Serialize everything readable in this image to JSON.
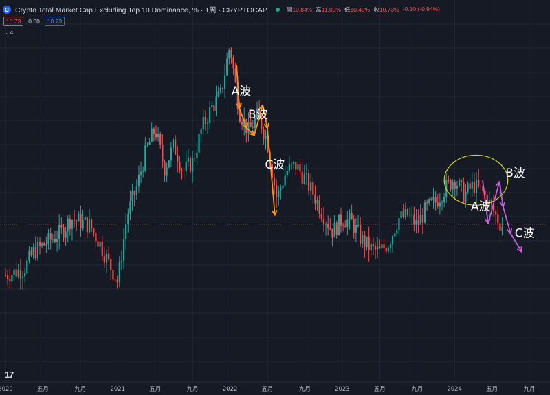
{
  "header": {
    "logo_glyph": "C",
    "title": "Crypto Total Market Cap Excluding Top 10 Dominance, % · 1周 · CRYPTOCAP",
    "open_label": "開",
    "open": "10.84%",
    "high_label": "高",
    "high": "11.00%",
    "low_label": "低",
    "low": "10.49%",
    "close_label": "收",
    "close": "10.73%",
    "change": "-0.10 (-0.94%)"
  },
  "indicator_row": {
    "value_red": "10.73",
    "value_plain": "0.00",
    "value_blue": "10.73"
  },
  "collapse_row": {
    "chevron": "⌄",
    "count": "4"
  },
  "tv_logo": "17",
  "colors": {
    "background": "#161a25",
    "up": "#26a69a",
    "down": "#ef5350",
    "grid": "#242838",
    "orange_wave": "#f7931a",
    "purple_wave": "#c064d8",
    "circle": "#d4d61c"
  },
  "chart_data": {
    "type": "candlestick",
    "x_ticks": [
      {
        "label": "2020",
        "t": 0
      },
      {
        "label": "五月",
        "t": 4
      },
      {
        "label": "九月",
        "t": 8
      },
      {
        "label": "2021",
        "t": 12
      },
      {
        "label": "五月",
        "t": 16
      },
      {
        "label": "九月",
        "t": 20
      },
      {
        "label": "2022",
        "t": 24
      },
      {
        "label": "五月",
        "t": 28
      },
      {
        "label": "九月",
        "t": 32
      },
      {
        "label": "2023",
        "t": 36
      },
      {
        "label": "五月",
        "t": 40
      },
      {
        "label": "九月",
        "t": 44
      },
      {
        "label": "2024",
        "t": 48
      },
      {
        "label": "五月",
        "t": 52
      },
      {
        "label": "九月",
        "t": 56
      }
    ],
    "t_range": [
      0,
      56.4
    ],
    "y_range": [
      7.6,
      16.8
    ],
    "anchors": [
      [
        0,
        9.2
      ],
      [
        1,
        9.3
      ],
      [
        2,
        9.4
      ],
      [
        3,
        9.9
      ],
      [
        4,
        10.1
      ],
      [
        5,
        10.3
      ],
      [
        6,
        10.5
      ],
      [
        7,
        10.9
      ],
      [
        8,
        10.8
      ],
      [
        9,
        10.7
      ],
      [
        10,
        10.2
      ],
      [
        11,
        9.6
      ],
      [
        12,
        9.0
      ],
      [
        13,
        11.0
      ],
      [
        14,
        11.8
      ],
      [
        15,
        12.9
      ],
      [
        16,
        13.6
      ],
      [
        17,
        12.4
      ],
      [
        18,
        13.1
      ],
      [
        19,
        12.3
      ],
      [
        20,
        12.6
      ],
      [
        21,
        13.6
      ],
      [
        22,
        14.2
      ],
      [
        23,
        14.6
      ],
      [
        24,
        16.1
      ],
      [
        25,
        14.1
      ],
      [
        26,
        13.5
      ],
      [
        27,
        14.0
      ],
      [
        28,
        13.2
      ],
      [
        29,
        11.5
      ],
      [
        30,
        12.3
      ],
      [
        31,
        12.5
      ],
      [
        32,
        12.1
      ],
      [
        33,
        11.6
      ],
      [
        34,
        11.0
      ],
      [
        35,
        10.5
      ],
      [
        36,
        10.9
      ],
      [
        37,
        10.8
      ],
      [
        38,
        10.3
      ],
      [
        39,
        10.0
      ],
      [
        40,
        9.9
      ],
      [
        41,
        10.2
      ],
      [
        42,
        10.9
      ],
      [
        43,
        11.0
      ],
      [
        44,
        10.7
      ],
      [
        45,
        11.2
      ],
      [
        46,
        11.4
      ],
      [
        47,
        11.8
      ],
      [
        48,
        12.1
      ],
      [
        49,
        11.6
      ],
      [
        50,
        11.9
      ],
      [
        51,
        11.7
      ],
      [
        52,
        11.2
      ],
      [
        53,
        10.7
      ]
    ],
    "current_price": 10.73,
    "annotations": [
      {
        "group": "orange",
        "label": "A波",
        "label_t": 25.2,
        "label_y": 14.6
      },
      {
        "group": "orange",
        "label": "B波",
        "label_t": 27.0,
        "label_y": 13.9
      },
      {
        "group": "orange",
        "label": "C波",
        "label_t": 28.8,
        "label_y": 12.4
      },
      {
        "group": "purple",
        "label": "B波",
        "label_t": 54.5,
        "label_y": 12.15
      },
      {
        "group": "purple",
        "label": "A波",
        "label_t": 50.8,
        "label_y": 11.15
      },
      {
        "group": "purple",
        "label": "C波",
        "label_t": 55.5,
        "label_y": 10.35
      }
    ],
    "orange_path": [
      [
        24.7,
        15.5
      ],
      [
        25.0,
        14.2
      ],
      [
        25.8,
        13.6
      ],
      [
        26.6,
        13.4
      ],
      [
        27.5,
        14.3
      ],
      [
        28.0,
        13.6
      ],
      [
        28.8,
        11.0
      ]
    ],
    "purple_path": [
      [
        51.0,
        12.05
      ],
      [
        51.6,
        10.75
      ],
      [
        52.8,
        12.0
      ],
      [
        53.2,
        11.25
      ],
      [
        54.0,
        10.45
      ],
      [
        55.2,
        9.9
      ]
    ],
    "circle": {
      "t": 50.3,
      "y": 12.05,
      "rt": 3.4,
      "ry": 0.75
    }
  }
}
